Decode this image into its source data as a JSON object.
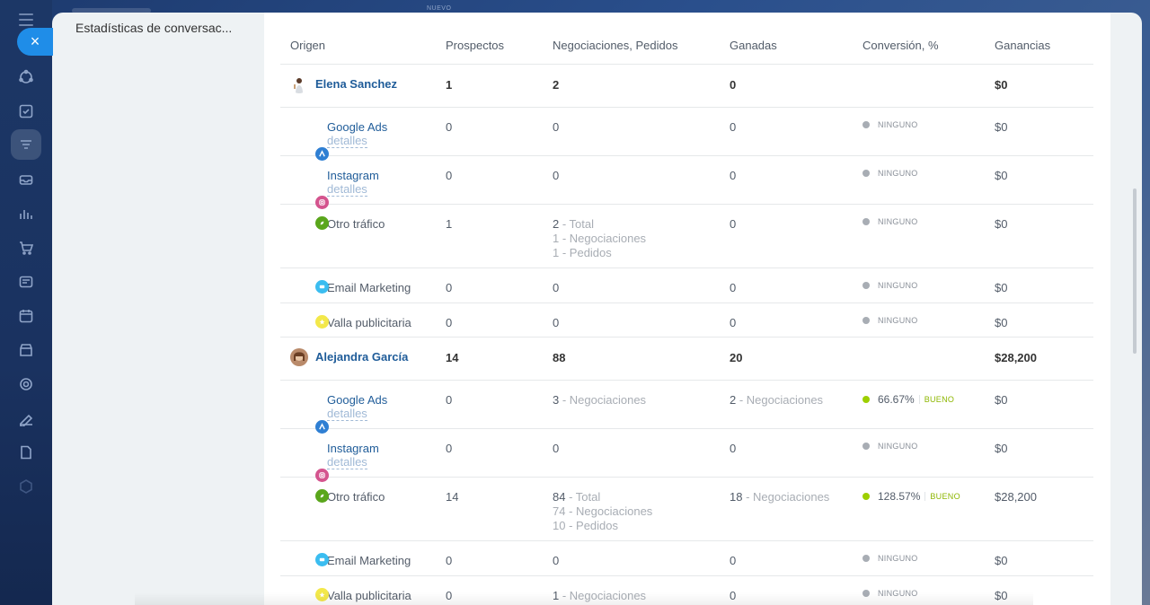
{
  "top": {
    "new_label": "NUEVO"
  },
  "sidebar": {
    "close_label": "×",
    "icons": [
      "menu-icon",
      "collab-icon",
      "tasks-icon",
      "crm-funnel-icon",
      "inbox-icon",
      "analytics-icon",
      "cart-icon",
      "calendar-card-icon",
      "planner-icon",
      "store-icon",
      "target-icon",
      "sign-icon",
      "document-icon",
      "box-icon"
    ]
  },
  "panel": {
    "nav_title": "Estadísticas de conversac..."
  },
  "table": {
    "headers": [
      "Origen",
      "Prospectos",
      "Negociaciones, Pedidos",
      "Ganadas",
      "Conversión, %",
      "Ganancias"
    ],
    "detail_label": "detalles",
    "none_label": "NINGUNO",
    "good_label": "BUENO",
    "owners": [
      {
        "name": "Elena Sanchez",
        "prospects": "1",
        "deals": "2",
        "won": "0",
        "earnings": "$0",
        "sources": [
          {
            "name": "Google Ads",
            "link": true,
            "icon": "google-ads",
            "prospects": "0",
            "deals_lines": [
              {
                "num": "0",
                "label": ""
              }
            ],
            "won_num": "0",
            "won_label": "",
            "conv_pct": "",
            "conv_state": "none",
            "earnings": "$0"
          },
          {
            "name": "Instagram",
            "link": true,
            "icon": "instagram",
            "prospects": "0",
            "deals_lines": [
              {
                "num": "0",
                "label": ""
              }
            ],
            "won_num": "0",
            "won_label": "",
            "conv_pct": "",
            "conv_state": "none",
            "earnings": "$0"
          },
          {
            "name": "Otro tráfico",
            "link": false,
            "icon": "other",
            "prospects": "1",
            "deals_lines": [
              {
                "num": "2",
                "label": " - Total"
              },
              {
                "num": "1",
                "label": " - Negociaciones"
              },
              {
                "num": "1",
                "label": " - Pedidos"
              }
            ],
            "won_num": "0",
            "won_label": "",
            "conv_pct": "",
            "conv_state": "none",
            "earnings": "$0"
          },
          {
            "name": "Email Marketing",
            "link": false,
            "icon": "email",
            "prospects": "0",
            "deals_lines": [
              {
                "num": "0",
                "label": ""
              }
            ],
            "won_num": "0",
            "won_label": "",
            "conv_pct": "",
            "conv_state": "none",
            "earnings": "$0"
          },
          {
            "name": "Valla publicitaria",
            "link": false,
            "icon": "billboard",
            "prospects": "0",
            "deals_lines": [
              {
                "num": "0",
                "label": ""
              }
            ],
            "won_num": "0",
            "won_label": "",
            "conv_pct": "",
            "conv_state": "none",
            "earnings": "$0"
          }
        ]
      },
      {
        "name": "Alejandra García",
        "prospects": "14",
        "deals": "88",
        "won": "20",
        "earnings": "$28,200",
        "sources": [
          {
            "name": "Google Ads",
            "link": true,
            "icon": "google-ads",
            "prospects": "0",
            "deals_lines": [
              {
                "num": "3",
                "label": " - Negociaciones"
              }
            ],
            "won_num": "2",
            "won_label": " - Negociaciones",
            "conv_pct": "66.67%",
            "conv_state": "good",
            "earnings": "$0"
          },
          {
            "name": "Instagram",
            "link": true,
            "icon": "instagram",
            "prospects": "0",
            "deals_lines": [
              {
                "num": "0",
                "label": ""
              }
            ],
            "won_num": "0",
            "won_label": "",
            "conv_pct": "",
            "conv_state": "none",
            "earnings": "$0"
          },
          {
            "name": "Otro tráfico",
            "link": false,
            "icon": "other",
            "prospects": "14",
            "deals_lines": [
              {
                "num": "84",
                "label": " - Total"
              },
              {
                "num": "74",
                "label": " - Negociaciones"
              },
              {
                "num": "10",
                "label": " - Pedidos"
              }
            ],
            "won_num": "18",
            "won_label": " - Negociaciones",
            "conv_pct": "128.57%",
            "conv_state": "good",
            "earnings": "$28,200"
          },
          {
            "name": "Email Marketing",
            "link": false,
            "icon": "email",
            "prospects": "0",
            "deals_lines": [
              {
                "num": "0",
                "label": ""
              }
            ],
            "won_num": "0",
            "won_label": "",
            "conv_pct": "",
            "conv_state": "none",
            "earnings": "$0"
          },
          {
            "name": "Valla publicitaria",
            "link": false,
            "icon": "billboard",
            "prospects": "0",
            "deals_lines": [
              {
                "num": "1",
                "label": " - Negociaciones"
              }
            ],
            "won_num": "0",
            "won_label": "",
            "conv_pct": "",
            "conv_state": "none",
            "earnings": "$0"
          }
        ]
      }
    ]
  },
  "colors": {
    "accent": "#1f8de8",
    "link": "#1f5c99",
    "good": "#9dcf00",
    "google_ads": "#2f7fd3",
    "instagram": "#d4548e",
    "other": "#5aa61c",
    "email": "#3bbdf0",
    "billboard": "#f3e84a"
  }
}
